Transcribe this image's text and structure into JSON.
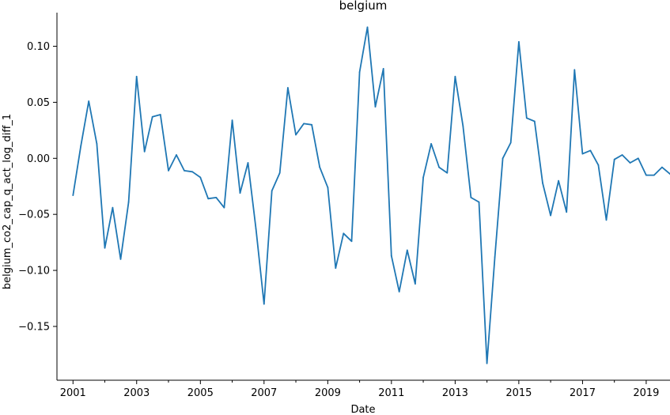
{
  "chart_data": {
    "type": "line",
    "title": "belgium",
    "xlabel": "Date",
    "ylabel": "belgium_co2_cap_q_act_log_diff_1",
    "x_axis_type": "date",
    "xlim": [
      "2000-07-01",
      "2019-10-01"
    ],
    "ylim": [
      -0.198,
      0.13
    ],
    "grid": false,
    "legend": "none",
    "x_ticks": [
      "2001",
      "2003",
      "2005",
      "2007",
      "2009",
      "2011",
      "2013",
      "2015",
      "2017",
      "2019"
    ],
    "y_ticks": [
      "−0.15",
      "−0.10",
      "−0.05",
      "0.00",
      "0.05",
      "0.10"
    ],
    "y_tick_values": [
      -0.15,
      -0.1,
      -0.05,
      0.0,
      0.05,
      0.1
    ],
    "series": [
      {
        "color": "#1f77b4",
        "x": [
          "2001-01-01",
          "2001-04-01",
          "2001-07-01",
          "2001-10-01",
          "2002-01-01",
          "2002-04-01",
          "2002-07-01",
          "2002-10-01",
          "2003-01-01",
          "2003-04-01",
          "2003-07-01",
          "2003-10-01",
          "2004-01-01",
          "2004-04-01",
          "2004-07-01",
          "2004-10-01",
          "2005-01-01",
          "2005-04-01",
          "2005-07-01",
          "2005-10-01",
          "2006-01-01",
          "2006-04-01",
          "2006-07-01",
          "2006-10-01",
          "2007-01-01",
          "2007-04-01",
          "2007-07-01",
          "2007-10-01",
          "2008-01-01",
          "2008-04-01",
          "2008-07-01",
          "2008-10-01",
          "2009-01-01",
          "2009-04-01",
          "2009-07-01",
          "2009-10-01",
          "2010-01-01",
          "2010-04-01",
          "2010-07-01",
          "2010-10-01",
          "2011-01-01",
          "2011-04-01",
          "2011-07-01",
          "2011-10-01",
          "2012-01-01",
          "2012-04-01",
          "2012-07-01",
          "2012-10-01",
          "2013-01-01",
          "2013-04-01",
          "2013-07-01",
          "2013-10-01",
          "2014-01-01",
          "2014-04-01",
          "2014-07-01",
          "2014-10-01",
          "2015-01-01",
          "2015-04-01",
          "2015-07-01",
          "2015-10-01",
          "2016-01-01",
          "2016-04-01",
          "2016-07-01",
          "2016-10-01",
          "2017-01-01",
          "2017-04-01",
          "2017-07-01",
          "2017-10-01",
          "2018-01-01",
          "2018-04-01",
          "2018-07-01",
          "2018-10-01",
          "2019-01-01",
          "2019-04-01",
          "2019-07-01",
          "2019-10-01"
        ],
        "y": [
          -0.033,
          0.011,
          0.051,
          0.013,
          -0.08,
          -0.044,
          -0.09,
          -0.039,
          0.073,
          0.006,
          0.037,
          0.039,
          -0.011,
          0.003,
          -0.011,
          -0.012,
          -0.017,
          -0.036,
          -0.035,
          -0.044,
          0.034,
          -0.031,
          -0.004,
          -0.063,
          -0.13,
          -0.029,
          -0.013,
          0.063,
          0.021,
          0.031,
          0.03,
          -0.008,
          -0.026,
          -0.098,
          -0.067,
          -0.074,
          0.077,
          0.117,
          0.046,
          0.08,
          -0.087,
          -0.119,
          -0.082,
          -0.112,
          -0.017,
          0.013,
          -0.008,
          -0.013,
          0.073,
          0.029,
          -0.035,
          -0.039,
          -0.183,
          -0.088,
          0.0,
          0.014,
          0.104,
          0.036,
          0.033,
          -0.022,
          -0.051,
          -0.02,
          -0.048,
          0.079,
          0.004,
          0.007,
          -0.006,
          -0.055,
          -0.001,
          0.003,
          -0.004,
          0.0,
          -0.015,
          -0.015,
          -0.008,
          -0.014
        ]
      }
    ]
  }
}
